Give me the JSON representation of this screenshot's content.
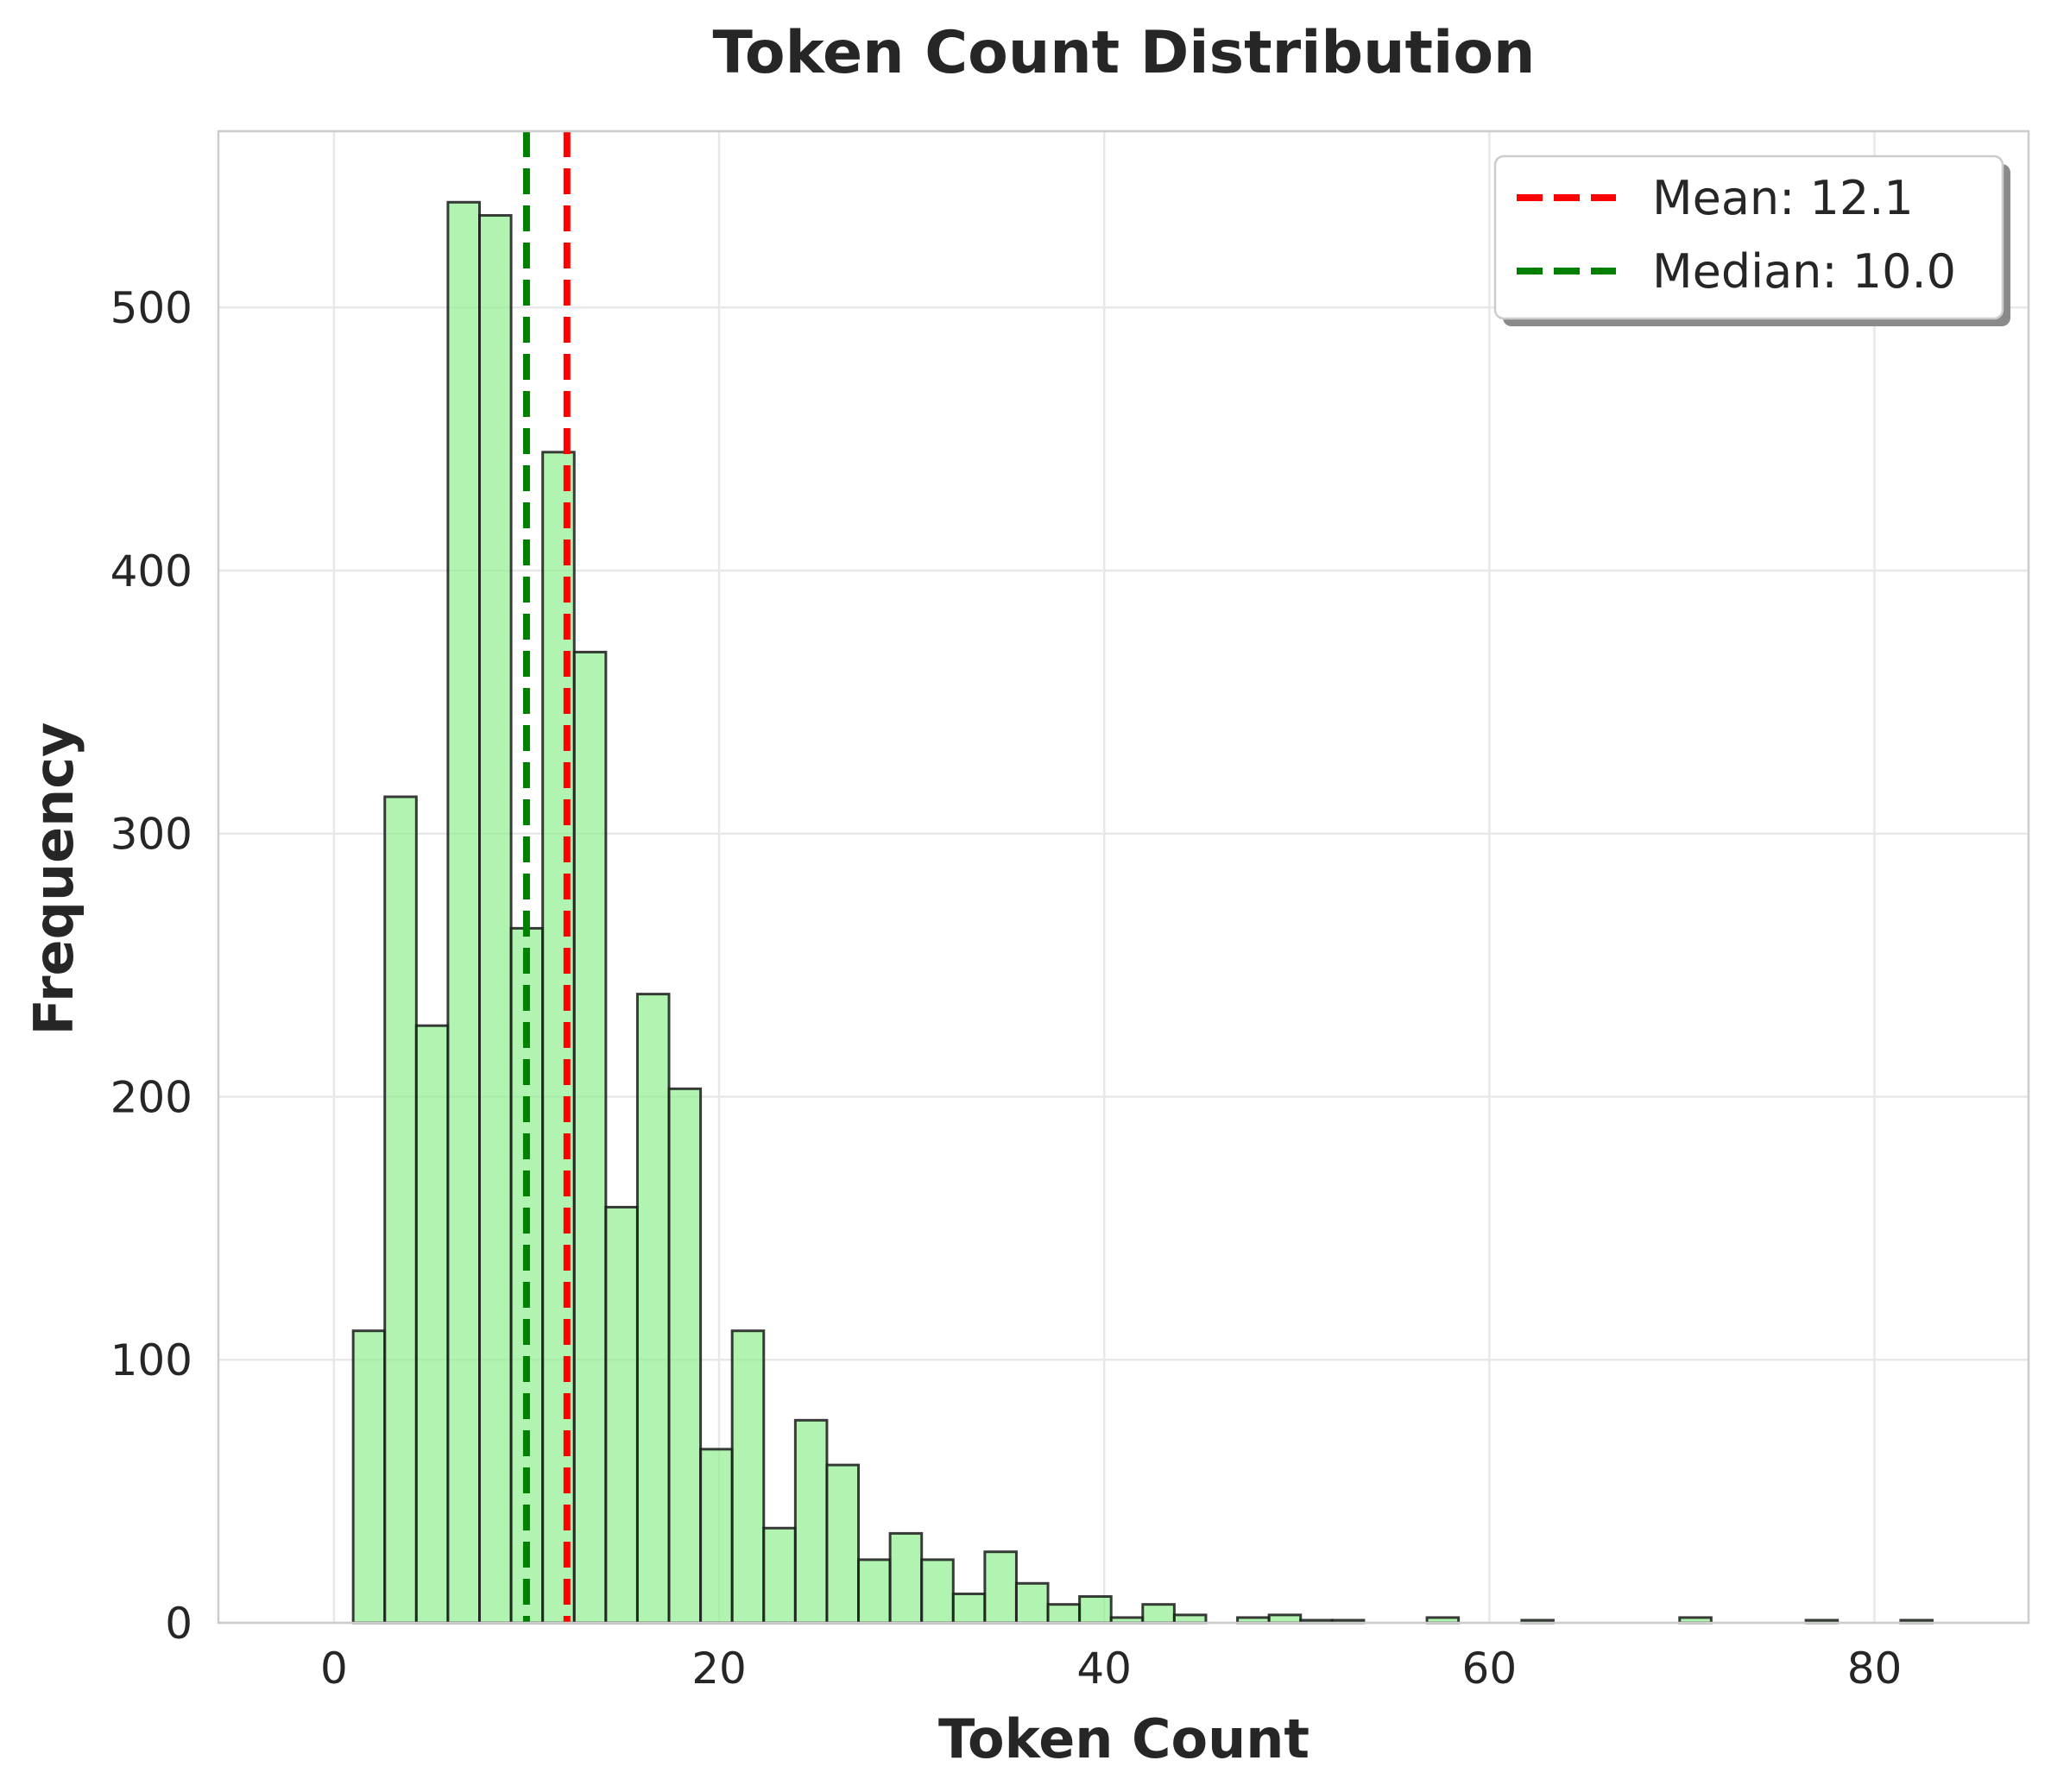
{
  "chart_data": {
    "type": "bar",
    "title": "Token Count Distribution",
    "xlabel": "Token Count",
    "ylabel": "Frequency",
    "xlim": [
      -6,
      88
    ],
    "ylim": [
      0,
      567
    ],
    "xticks": [
      0,
      20,
      40,
      60,
      80
    ],
    "yticks": [
      0,
      100,
      200,
      300,
      400,
      500
    ],
    "grid": true,
    "legend_position": "top-right",
    "bin_width": 1.64,
    "bins": [
      {
        "x0": 1.0,
        "count": 111
      },
      {
        "x0": 2.64,
        "count": 314
      },
      {
        "x0": 4.28,
        "count": 227
      },
      {
        "x0": 5.92,
        "count": 540
      },
      {
        "x0": 7.56,
        "count": 535
      },
      {
        "x0": 9.2,
        "count": 264
      },
      {
        "x0": 10.84,
        "count": 445
      },
      {
        "x0": 12.48,
        "count": 369
      },
      {
        "x0": 14.12,
        "count": 158
      },
      {
        "x0": 15.76,
        "count": 239
      },
      {
        "x0": 17.4,
        "count": 203
      },
      {
        "x0": 19.04,
        "count": 66
      },
      {
        "x0": 20.68,
        "count": 111
      },
      {
        "x0": 22.32,
        "count": 36
      },
      {
        "x0": 23.96,
        "count": 77
      },
      {
        "x0": 25.6,
        "count": 60
      },
      {
        "x0": 27.24,
        "count": 24
      },
      {
        "x0": 28.88,
        "count": 34
      },
      {
        "x0": 30.52,
        "count": 24
      },
      {
        "x0": 32.16,
        "count": 11
      },
      {
        "x0": 33.8,
        "count": 27
      },
      {
        "x0": 35.44,
        "count": 15
      },
      {
        "x0": 37.08,
        "count": 7
      },
      {
        "x0": 38.72,
        "count": 10
      },
      {
        "x0": 40.36,
        "count": 2
      },
      {
        "x0": 42.0,
        "count": 7
      },
      {
        "x0": 43.64,
        "count": 3
      },
      {
        "x0": 45.28,
        "count": 0
      },
      {
        "x0": 46.92,
        "count": 2
      },
      {
        "x0": 48.56,
        "count": 3
      },
      {
        "x0": 50.2,
        "count": 1
      },
      {
        "x0": 51.84,
        "count": 1
      },
      {
        "x0": 53.48,
        "count": 0
      },
      {
        "x0": 55.12,
        "count": 0
      },
      {
        "x0": 56.76,
        "count": 2
      },
      {
        "x0": 58.4,
        "count": 0
      },
      {
        "x0": 60.04,
        "count": 0
      },
      {
        "x0": 61.68,
        "count": 1
      },
      {
        "x0": 63.32,
        "count": 0
      },
      {
        "x0": 64.96,
        "count": 0
      },
      {
        "x0": 66.6,
        "count": 0
      },
      {
        "x0": 68.24,
        "count": 0
      },
      {
        "x0": 69.88,
        "count": 2
      },
      {
        "x0": 71.52,
        "count": 0
      },
      {
        "x0": 73.16,
        "count": 0
      },
      {
        "x0": 74.8,
        "count": 0
      },
      {
        "x0": 76.44,
        "count": 1
      },
      {
        "x0": 78.08,
        "count": 0
      },
      {
        "x0": 79.72,
        "count": 0
      },
      {
        "x0": 81.36,
        "count": 1
      }
    ],
    "bar_fill": "#90EE90",
    "bar_edge": "#1a1a1a",
    "reference_lines": [
      {
        "name": "Mean: 12.1",
        "x": 12.1,
        "color": "#ff0000",
        "style": "dashed"
      },
      {
        "name": "Median: 10.0",
        "x": 10.0,
        "color": "#008000",
        "style": "dashed"
      }
    ]
  }
}
